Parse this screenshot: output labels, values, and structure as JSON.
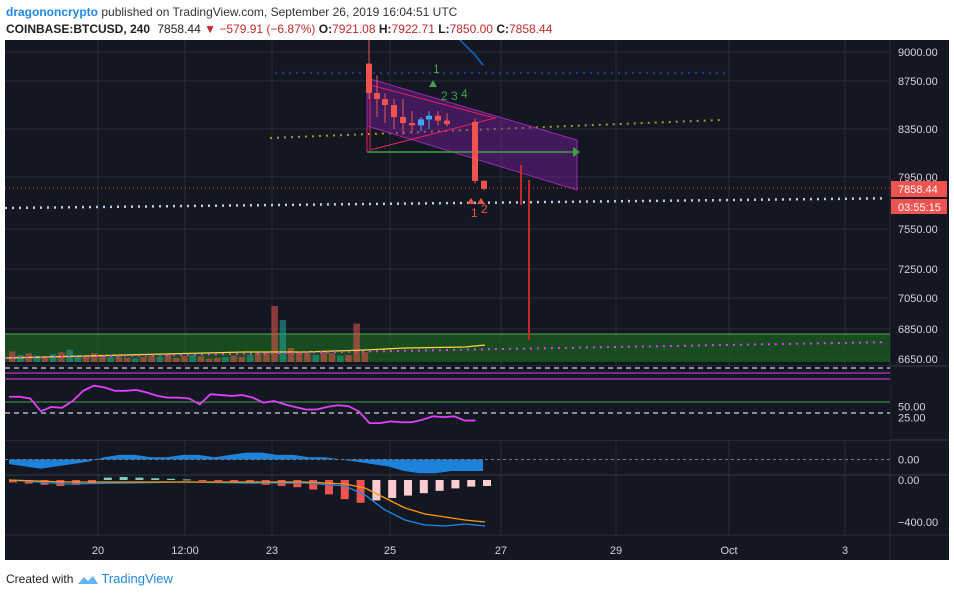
{
  "header": {
    "author": "dragononcrypto",
    "publish_text": "published on TradingView.com, September 26, 2019 16:04:51 UTC",
    "symbol": "COINBASE:BTCUSD, 240",
    "last": "7858.44",
    "change": "−579.91 (−6.87%)",
    "o_label": "O:",
    "o_value": "7921.08",
    "h_label": "H:",
    "h_value": "7922.71",
    "l_label": "L:",
    "l_value": "7850.00",
    "c_label": "C:",
    "c_value": "7858.44"
  },
  "footer": {
    "created_with": "Created with",
    "brand": "TradingView"
  },
  "colors": {
    "background": "#131722",
    "up": "#26a69a",
    "down": "#ef5350",
    "rsi": "#e040fb",
    "macd_hist_bg": "#1e88e5"
  },
  "chart_data": [
    {
      "type": "candlestick",
      "panel": "price",
      "x_tick_labels": [
        "20",
        "12:00",
        "23",
        "25",
        "27",
        "29",
        "Oct",
        "3"
      ],
      "y_tick_labels": [
        "9000.00",
        "8750.00",
        "8350.00",
        "7950.00",
        "7550.00",
        "7250.00",
        "7050.00",
        "6850.00",
        "6650.00"
      ],
      "price_marker": "7858.44",
      "countdown": "03:55:15",
      "annotations": [
        "1",
        "2",
        "3",
        "4",
        "1",
        "2"
      ],
      "candles_visible": [
        {
          "o": 8900,
          "h": 9100,
          "l": 8600,
          "c": 8650
        },
        {
          "o": 8650,
          "h": 8800,
          "l": 8450,
          "c": 8600
        },
        {
          "o": 8600,
          "h": 8650,
          "l": 8400,
          "c": 8550
        },
        {
          "o": 8550,
          "h": 8600,
          "l": 8350,
          "c": 8450
        },
        {
          "o": 8450,
          "h": 8600,
          "l": 8300,
          "c": 8400
        },
        {
          "o": 8400,
          "h": 8500,
          "l": 8320,
          "c": 8380
        },
        {
          "o": 8380,
          "h": 8450,
          "l": 8330,
          "c": 8430
        },
        {
          "o": 8430,
          "h": 8500,
          "l": 8350,
          "c": 8460
        },
        {
          "o": 8460,
          "h": 8500,
          "l": 8380,
          "c": 8420
        },
        {
          "o": 8420,
          "h": 8480,
          "l": 8370,
          "c": 8390
        },
        {
          "o": 8410,
          "h": 8440,
          "l": 7900,
          "c": 7920
        },
        {
          "o": 7921.08,
          "h": 7922.71,
          "l": 7850,
          "c": 7858.44
        }
      ],
      "volume_visible": [
        30,
        20,
        25,
        18,
        15,
        22,
        28,
        35,
        20,
        15,
        25,
        18,
        14,
        16,
        12,
        10,
        14,
        18,
        15,
        22,
        12,
        18,
        20,
        16,
        10,
        12,
        14,
        18,
        15,
        20,
        25,
        30,
        160,
        120,
        40,
        30,
        25,
        20,
        30,
        25,
        18,
        20,
        110,
        28
      ]
    },
    {
      "type": "line",
      "panel": "rsi",
      "y_tick_labels": [
        "50.00",
        "25.00"
      ],
      "series": [
        {
          "values": [
            45,
            45,
            43,
            28,
            33,
            32,
            40,
            52,
            58,
            56,
            52,
            52,
            53,
            50,
            46,
            44,
            44,
            43,
            36,
            48,
            47,
            46,
            47,
            44,
            38,
            40,
            36,
            33,
            30,
            30,
            33,
            35,
            34,
            28,
            14,
            14,
            16,
            15,
            15,
            18,
            22,
            21,
            22,
            17,
            17
          ]
        }
      ]
    },
    {
      "type": "area",
      "panel": "momentum",
      "y_tick_labels": [
        "0.00"
      ],
      "series": [
        {
          "values": [
            -2,
            -3,
            -4,
            -3,
            -2,
            -1,
            1,
            2,
            2,
            1,
            1,
            2,
            2,
            1,
            2,
            3,
            3,
            2,
            2,
            1,
            1,
            0,
            -1,
            -2,
            -3,
            -5,
            -6,
            -6,
            -5,
            -5,
            -5
          ]
        }
      ]
    },
    {
      "type": "bar",
      "panel": "macd",
      "y_tick_labels": [
        "0.00",
        "−400.00"
      ],
      "series": [
        {
          "values": [
            -20,
            -30,
            -40,
            -50,
            -40,
            -30,
            20,
            25,
            20,
            15,
            10,
            5,
            -5,
            -10,
            -20,
            -30,
            -40,
            -50,
            -60,
            -80,
            -120,
            -160,
            -190,
            -170,
            -150,
            -130,
            -110,
            -90,
            -70,
            -55,
            -50
          ]
        }
      ]
    }
  ]
}
